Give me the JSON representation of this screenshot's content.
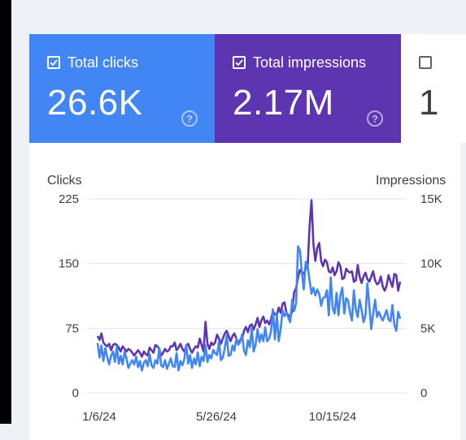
{
  "tiles": {
    "clicks": {
      "label": "Total clicks",
      "value": "26.6K",
      "color": "#4285f4",
      "checked": true
    },
    "impressions": {
      "label": "Total impressions",
      "value": "2.17M",
      "color": "#5e35b1",
      "checked": true
    },
    "third": {
      "value": "1",
      "checked": false
    }
  },
  "help_glyph": "?",
  "chart_data": {
    "type": "line",
    "x_tick_labels": [
      "1/6/24",
      "5/26/24",
      "10/15/24"
    ],
    "left_axis": {
      "title": "Clicks",
      "ticks": [
        "225",
        "150",
        "75",
        "0"
      ],
      "range": [
        0,
        225
      ]
    },
    "right_axis": {
      "title": "Impressions",
      "ticks": [
        "15K",
        "10K",
        "5K",
        "0"
      ],
      "range": [
        0,
        15000
      ]
    },
    "grid": true,
    "series": [
      {
        "name": "Impressions",
        "axis": "right",
        "color": "#5e35b1",
        "values": [
          4400,
          4100,
          4600,
          3900,
          3700,
          3600,
          3800,
          3300,
          3700,
          3800,
          3700,
          3500,
          3200,
          3600,
          3400,
          3200,
          3400,
          3300,
          3100,
          2900,
          3100,
          3300,
          3100,
          2800,
          3200,
          3000,
          2900,
          3500,
          3300,
          3100,
          3700,
          3600,
          3400,
          2900,
          3100,
          3400,
          3200,
          3300,
          3600,
          3600,
          3900,
          3300,
          3500,
          3800,
          3400,
          3200,
          3600,
          3800,
          3400,
          3100,
          3400,
          3600,
          3500,
          4200,
          3700,
          3200,
          5500,
          3800,
          3400,
          3900,
          3700,
          3900,
          4500,
          4200,
          3800,
          4200,
          4600,
          4800,
          4400,
          4000,
          4400,
          4600,
          4200,
          3800,
          4100,
          4200,
          4800,
          5100,
          4700,
          5200,
          5300,
          4900,
          5300,
          5800,
          5100,
          5600,
          5900,
          5400,
          5600,
          5300,
          5700,
          6300,
          6100,
          6000,
          6600,
          6200,
          6900,
          7000,
          6200,
          6000,
          5900,
          6300,
          7800,
          8100,
          8900,
          9500,
          9300,
          9200,
          9600,
          9800,
          12800,
          14900,
          11500,
          10200,
          11200,
          11600,
          10200,
          9800,
          10300,
          10100,
          9400,
          9300,
          9700,
          9100,
          9400,
          10100,
          9800,
          8800,
          8900,
          9600,
          9400,
          9300,
          9400,
          8600,
          8700,
          9900,
          9000,
          8500,
          9000,
          9300,
          8800,
          8600,
          9000,
          9400,
          8700,
          8400,
          8500,
          9000,
          8200,
          7900,
          8300,
          9100,
          8600,
          8200,
          9200,
          9100,
          7900,
          8600
        ]
      },
      {
        "name": "Clicks",
        "axis": "left",
        "color": "#4285f4",
        "values": [
          58,
          41,
          55,
          37,
          52,
          42,
          33,
          43,
          48,
          36,
          54,
          34,
          43,
          33,
          48,
          40,
          29,
          34,
          38,
          33,
          42,
          30,
          37,
          26,
          35,
          38,
          31,
          45,
          32,
          29,
          38,
          34,
          52,
          32,
          30,
          38,
          28,
          34,
          40,
          31,
          30,
          46,
          26,
          37,
          32,
          39,
          56,
          34,
          44,
          29,
          40,
          33,
          47,
          31,
          42,
          37,
          55,
          36,
          44,
          40,
          50,
          46,
          44,
          60,
          38,
          41,
          52,
          67,
          43,
          44,
          55,
          49,
          63,
          56,
          59,
          68,
          49,
          44,
          61,
          53,
          76,
          48,
          56,
          74,
          59,
          68,
          60,
          76,
          60,
          63,
          71,
          97,
          62,
          91,
          60,
          74,
          96,
          89,
          93,
          87,
          82,
          108,
          95,
          104,
          170,
          165,
          140,
          120,
          152,
          147,
          131,
          115,
          122,
          113,
          120,
          115,
          101,
          110,
          111,
          119,
          90,
          134,
          98,
          92,
          116,
          90,
          113,
          122,
          92,
          110,
          107,
          93,
          84,
          119,
          97,
          88,
          108,
          96,
          82,
          90,
          127,
          102,
          74,
          92,
          108,
          88,
          94,
          88,
          84,
          90,
          96,
          85,
          83,
          102,
          79,
          72,
          94,
          86
        ]
      }
    ]
  }
}
